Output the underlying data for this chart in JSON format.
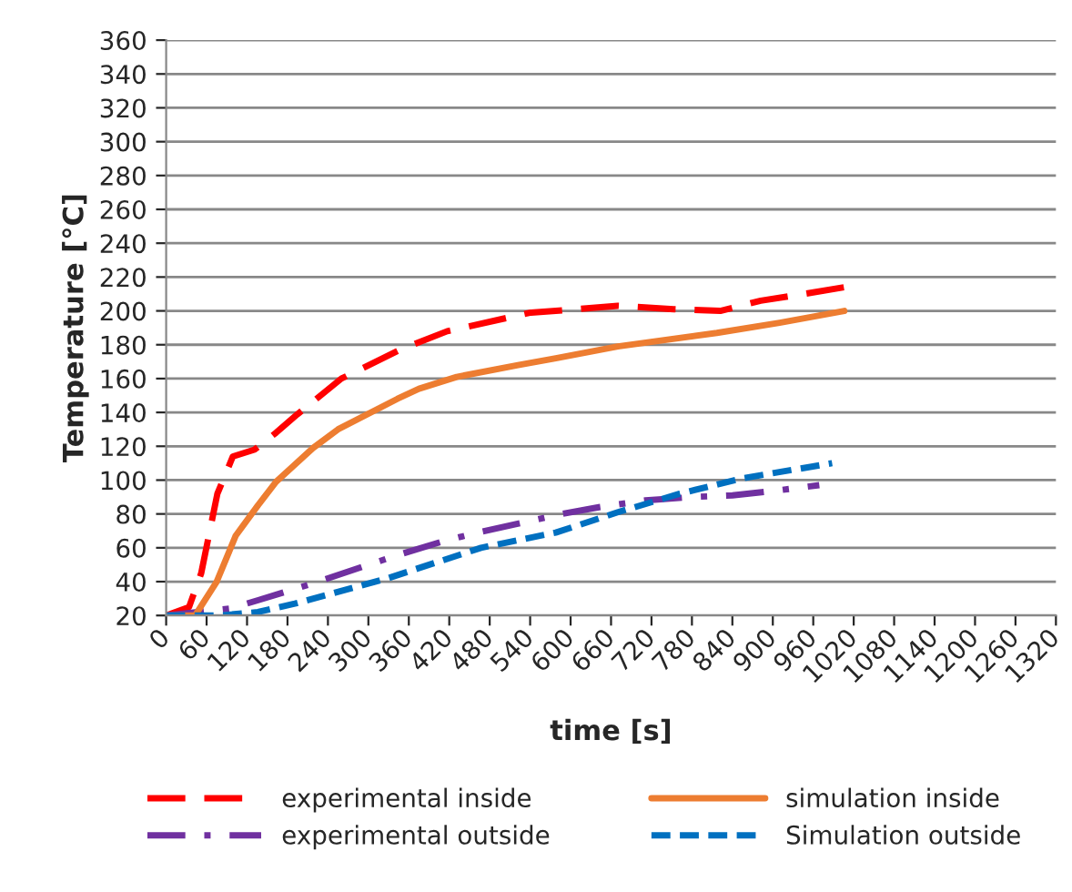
{
  "chart_data": {
    "type": "line",
    "xlabel": "time [s]",
    "ylabel": "Temperature [°C]",
    "xlim": [
      0,
      1320
    ],
    "ylim": [
      20,
      360
    ],
    "xticks": [
      0,
      60,
      120,
      180,
      240,
      300,
      360,
      420,
      480,
      540,
      600,
      660,
      720,
      780,
      840,
      900,
      960,
      1020,
      1080,
      1140,
      1200,
      1260,
      1320
    ],
    "yticks": [
      20,
      40,
      60,
      80,
      100,
      120,
      140,
      160,
      180,
      200,
      220,
      240,
      260,
      280,
      300,
      320,
      340,
      360
    ],
    "grid": "y",
    "legend": "bottom",
    "marker": "none",
    "series": [
      {
        "name": "experimental inside",
        "color": "#ff0000",
        "line_style": "dashed",
        "x": [
          0,
          34,
          52,
          76,
          99,
          131,
          163,
          195,
          260,
          347,
          417,
          541,
          578,
          670,
          753,
          822,
          882,
          946,
          1006
        ],
        "values": [
          20,
          25,
          45,
          92,
          114,
          118,
          128,
          139,
          160,
          177,
          188,
          199,
          200,
          203,
          201,
          200,
          206,
          210,
          214
        ]
      },
      {
        "name": "experimental outside",
        "color": "#7030a0",
        "line_style": "dashdot",
        "x": [
          0,
          94,
          136,
          218,
          338,
          412,
          462,
          587,
          642,
          711,
          780,
          840,
          909,
          969
        ],
        "values": [
          20,
          24,
          29,
          39,
          55,
          64,
          69,
          80,
          84,
          88,
          90,
          91,
          94,
          97
        ]
      },
      {
        "name": "simulation inside",
        "color": "#ed7d31",
        "line_style": "solid",
        "x": [
          0,
          43,
          75,
          103,
          136,
          163,
          218,
          255,
          343,
          375,
          431,
          522,
          578,
          670,
          817,
          910,
          1006
        ],
        "values": [
          20,
          20,
          40,
          67,
          85,
          99,
          119,
          130,
          148,
          154,
          161,
          168,
          172,
          179,
          187,
          193,
          200
        ]
      },
      {
        "name": "Simulation outside",
        "color": "#0070c0",
        "line_style": "dotted",
        "x": [
          0,
          80,
          136,
          191,
          329,
          467,
          578,
          670,
          762,
          854,
          988
        ],
        "values": [
          20,
          20,
          22,
          27,
          42,
          60,
          69,
          81,
          92,
          101,
          110
        ]
      }
    ]
  }
}
